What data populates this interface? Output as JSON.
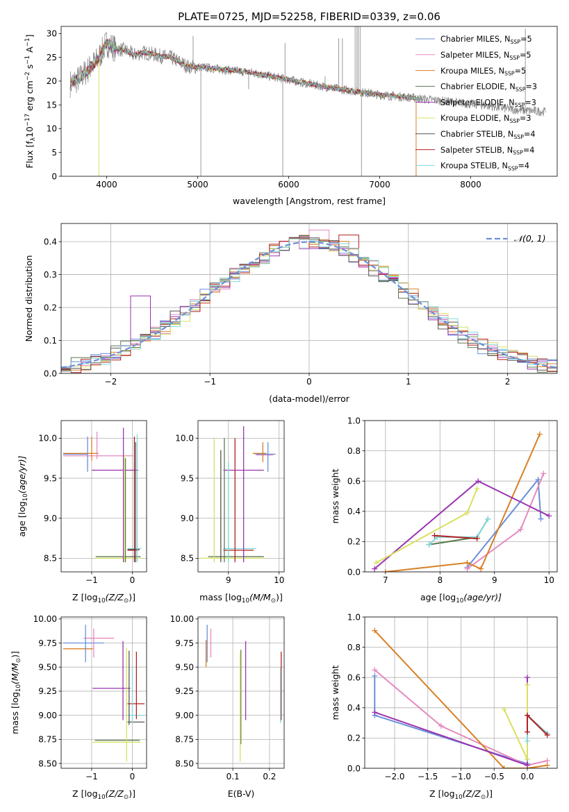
{
  "figure": {
    "title": "PLATE=0725, MJD=52258, FIBERID=0339, z=0.06"
  },
  "colors": {
    "Chabrier MILES": "#6a8fd8",
    "Salpeter MILES": "#e58ac0",
    "Kroupa MILES": "#d87f24",
    "Chabrier ELODIE": "#5a7a50",
    "Salpeter ELODIE": "#9a33b0",
    "Kroupa ELODIE": "#d8e060",
    "Chabrier STELIB": "#555555",
    "Salpeter STELIB": "#b02020",
    "Kroupa STELIB": "#80d8d8",
    "data": "#808080",
    "normal_curve": "#6a8fd8"
  },
  "chart_data": [
    {
      "id": "spectrum",
      "type": "line",
      "title": "PLATE=0725, MJD=52258, FIBERID=0339, z=0.06",
      "xlabel": "wavelength [Angstrom, rest frame]",
      "ylabel_parts": [
        "Flux [f",
        "λ",
        "10",
        "−17",
        " erg cm",
        "−2",
        " s",
        "−1",
        " A",
        "−1",
        "]"
      ],
      "xlim": [
        3500,
        8950
      ],
      "ylim": [
        0,
        31.5
      ],
      "xticks": [
        4000,
        5000,
        6000,
        7000,
        8000
      ],
      "yticks": [
        0,
        5,
        10,
        15,
        20,
        25,
        30
      ],
      "grid": false,
      "legend_position": "top-right",
      "legend": [
        {
          "name": "Chabrier MILES",
          "n": "5"
        },
        {
          "name": "Salpeter MILES",
          "n": "5"
        },
        {
          "name": "Kroupa MILES",
          "n": "5"
        },
        {
          "name": "Chabrier ELODIE",
          "n": "3"
        },
        {
          "name": "Salpeter ELODIE",
          "n": "3"
        },
        {
          "name": "Kroupa ELODIE",
          "n": "3"
        },
        {
          "name": "Chabrier STELIB",
          "n": "4"
        },
        {
          "name": "Salpeter STELIB",
          "n": "4"
        },
        {
          "name": "Kroupa STELIB",
          "n": "4"
        }
      ],
      "continuum_x": [
        3600,
        3700,
        3800,
        3900,
        4000,
        4100,
        4200,
        4300,
        4400,
        4500,
        4600,
        4700,
        4800,
        4900,
        5000,
        5200,
        5400,
        5600,
        5800,
        6000,
        6200,
        6400,
        6600,
        6800,
        7000,
        7200,
        7400,
        7600,
        7800,
        8000,
        8200,
        8400,
        8600,
        8800
      ],
      "continuum_y": [
        19.5,
        20.5,
        22.5,
        24.5,
        28.0,
        26.8,
        26.5,
        25.5,
        26.0,
        25.7,
        25.2,
        25.0,
        24.0,
        23.0,
        23.0,
        22.6,
        22.2,
        21.8,
        21.0,
        20.3,
        19.5,
        18.8,
        18.2,
        17.7,
        17.1,
        16.8,
        16.4,
        16.0,
        15.6,
        15.2,
        14.8,
        14.2,
        13.8,
        13.6
      ],
      "model_x_max": 7450,
      "spikes_up": [
        [
          4950,
          29.5
        ],
        [
          5960,
          28.0
        ],
        [
          6400,
          21.0
        ],
        [
          6550,
          29.0
        ],
        [
          6590,
          29.0
        ],
        [
          6730,
          31.5
        ],
        [
          6750,
          31.5
        ],
        [
          6765,
          31.5
        ],
        [
          6785,
          31.5
        ],
        [
          8600,
          31.0
        ],
        [
          5560,
          18.3
        ]
      ],
      "spikes_down": [
        [
          3915,
          0.0
        ],
        [
          5035,
          0.0
        ],
        [
          5935,
          0.0
        ],
        [
          6800,
          0.0
        ],
        [
          7400,
          0.0
        ]
      ]
    },
    {
      "id": "residual_hist",
      "type": "line",
      "xlabel": "(data-model)/error",
      "ylabel": "Normed distribution",
      "xlim": [
        -2.5,
        2.5
      ],
      "ylim": [
        0,
        0.455
      ],
      "xticks": [
        -2,
        -1,
        0,
        1,
        2
      ],
      "yticks": [
        0.0,
        0.1,
        0.2,
        0.3,
        0.4
      ],
      "grid": true,
      "legend_position": "top-right",
      "legend_label": "𝒩(0, 1)",
      "bin_width": 0.1,
      "mu": 0,
      "sigma": 1,
      "special_bins": [
        {
          "series": "Salpeter ELODIE",
          "x": -1.7,
          "y": 0.235
        },
        {
          "series": "Salpeter MILES",
          "x": 0.1,
          "y": 0.435
        },
        {
          "series": "Salpeter STELIB",
          "x": 0.4,
          "y": 0.42
        }
      ]
    },
    {
      "id": "age_vs_Z",
      "type": "scatter",
      "xlabel_parts": [
        "Z [log",
        "10",
        "(Z/Z",
        "⊙",
        ")]"
      ],
      "ylabel_parts": [
        "age  [log",
        "10",
        "(age/yr)]"
      ],
      "xlim": [
        -1.75,
        0.35
      ],
      "ylim": [
        8.33,
        10.22
      ],
      "xticks": [
        -1,
        0
      ],
      "yticks": [
        8.5,
        9.0,
        9.5,
        10.0
      ],
      "grid": true,
      "hbars": [
        {
          "series": "Chabrier MILES",
          "x1": -1.7,
          "x2": -1.1,
          "y": 9.8
        },
        {
          "series": "Kroupa MILES",
          "x1": -1.7,
          "x2": -0.83,
          "y": 9.81
        },
        {
          "series": "Salpeter MILES",
          "x1": -1.7,
          "x2": 0.02,
          "y": 9.78
        },
        {
          "series": "Salpeter ELODIE",
          "x1": -1.0,
          "x2": 0.15,
          "y": 9.6
        },
        {
          "series": "Chabrier ELODIE",
          "x1": -0.9,
          "x2": 0.2,
          "y": 8.52
        },
        {
          "series": "Kroupa ELODIE",
          "x1": -0.92,
          "x2": 0.22,
          "y": 8.5
        },
        {
          "series": "Kroupa STELIB",
          "x1": -0.12,
          "x2": 0.22,
          "y": 8.62
        },
        {
          "series": "Chabrier STELIB",
          "x1": -0.12,
          "x2": 0.18,
          "y": 8.61
        },
        {
          "series": "Salpeter STELIB",
          "x1": -0.12,
          "x2": 0.15,
          "y": 8.6
        }
      ],
      "vbars": [
        {
          "series": "Chabrier MILES",
          "x": -1.1,
          "y1": 9.58,
          "y2": 10.02
        },
        {
          "series": "Salpeter MILES",
          "x": -0.87,
          "y1": 9.74,
          "y2": 10.08
        },
        {
          "series": "Kroupa MILES",
          "x": -1.0,
          "y1": 9.72,
          "y2": 10.02
        },
        {
          "series": "Salpeter ELODIE",
          "x": -0.22,
          "y1": 8.45,
          "y2": 10.13
        },
        {
          "series": "Chabrier ELODIE",
          "x": -0.17,
          "y1": 8.45,
          "y2": 9.75
        },
        {
          "series": "Kroupa ELODIE",
          "x": -0.2,
          "y1": 8.45,
          "y2": 9.8
        },
        {
          "series": "Salpeter STELIB",
          "x": 0.05,
          "y1": 8.45,
          "y2": 10.02
        },
        {
          "series": "Kroupa STELIB",
          "x": 0.12,
          "y1": 8.45,
          "y2": 10.05
        },
        {
          "series": "Chabrier STELIB",
          "x": 0.08,
          "y1": 8.45,
          "y2": 9.95
        }
      ]
    },
    {
      "id": "age_vs_mass",
      "type": "scatter",
      "xlabel_parts": [
        "mass [log",
        "10",
        "(M/M",
        "⊙",
        ")]"
      ],
      "xlim": [
        8.4,
        10.1
      ],
      "ylim": [
        8.33,
        10.22
      ],
      "xticks": [
        9,
        10
      ],
      "yticks": [
        8.5,
        9.0,
        9.5,
        10.0
      ],
      "grid": true,
      "hbars": [
        {
          "series": "Kroupa MILES",
          "x1": 9.48,
          "x2": 9.75,
          "y": 9.81
        },
        {
          "series": "Chabrier MILES",
          "x1": 9.53,
          "x2": 9.93,
          "y": 9.8
        },
        {
          "series": "Salpeter MILES",
          "x1": 9.55,
          "x2": 9.88,
          "y": 9.79
        },
        {
          "series": "Salpeter ELODIE",
          "x1": 8.9,
          "x2": 9.7,
          "y": 9.6
        },
        {
          "series": "Chabrier ELODIE",
          "x1": 8.6,
          "x2": 9.7,
          "y": 8.52
        },
        {
          "series": "Kroupa ELODIE",
          "x1": 8.45,
          "x2": 9.7,
          "y": 8.5
        },
        {
          "series": "Kroupa STELIB",
          "x1": 8.9,
          "x2": 9.55,
          "y": 8.62
        },
        {
          "series": "Salpeter STELIB",
          "x1": 8.9,
          "x2": 9.5,
          "y": 8.6
        }
      ],
      "vbars": [
        {
          "series": "Chabrier MILES",
          "x": 9.78,
          "y1": 9.58,
          "y2": 9.95
        },
        {
          "series": "Kroupa MILES",
          "x": 9.68,
          "y1": 9.7,
          "y2": 9.95
        },
        {
          "series": "Salpeter ELODIE",
          "x": 9.3,
          "y1": 8.45,
          "y2": 10.15
        },
        {
          "series": "Chabrier ELODIE",
          "x": 8.92,
          "y1": 8.45,
          "y2": 10.0
        },
        {
          "series": "Kroupa ELODIE",
          "x": 8.72,
          "y1": 8.45,
          "y2": 10.0
        },
        {
          "series": "Chabrier STELIB",
          "x": 8.85,
          "y1": 8.45,
          "y2": 9.85
        },
        {
          "series": "Salpeter STELIB",
          "x": 9.13,
          "y1": 8.45,
          "y2": 10.0
        },
        {
          "series": "Kroupa STELIB",
          "x": 9.0,
          "y1": 8.45,
          "y2": 9.7
        }
      ]
    },
    {
      "id": "weight_vs_age",
      "type": "line",
      "xlabel_parts": [
        "age  [log",
        "10",
        "(age/yr)]"
      ],
      "ylabel": "mass weight",
      "xlim": [
        6.62,
        10.15
      ],
      "ylim": [
        0,
        1.0
      ],
      "xticks": [
        7,
        8,
        9,
        10
      ],
      "yticks": [
        0.0,
        0.2,
        0.4,
        0.6,
        0.8,
        1.0
      ],
      "grid": true,
      "series": [
        {
          "name": "Chabrier MILES",
          "x": [
            8.5,
            9.8,
            9.85
          ],
          "y": [
            0.03,
            0.61,
            0.35
          ]
        },
        {
          "name": "Salpeter MILES",
          "x": [
            8.5,
            9.48,
            9.9
          ],
          "y": [
            0.02,
            0.28,
            0.65
          ]
        },
        {
          "name": "Kroupa MILES",
          "x": [
            7.0,
            8.5,
            8.75,
            9.83
          ],
          "y": [
            0.0,
            0.06,
            0.02,
            0.91
          ]
        },
        {
          "name": "Salpeter ELODIE",
          "x": [
            6.8,
            8.7,
            10.0
          ],
          "y": [
            0.02,
            0.6,
            0.37
          ]
        },
        {
          "name": "Kroupa ELODIE",
          "x": [
            6.83,
            8.5,
            8.68
          ],
          "y": [
            0.06,
            0.39,
            0.55
          ]
        },
        {
          "name": "Chabrier ELODIE",
          "x": [
            7.8,
            8.68,
            8.88
          ],
          "y": [
            0.18,
            0.23,
            0.35
          ]
        },
        {
          "name": "Kroupa STELIB",
          "x": [
            7.8,
            7.95,
            8.68,
            8.88
          ],
          "y": [
            0.18,
            0.23,
            0.23,
            0.35
          ]
        },
        {
          "name": "Salpeter STELIB",
          "x": [
            7.9,
            8.68
          ],
          "y": [
            0.24,
            0.22
          ]
        }
      ]
    },
    {
      "id": "mass_vs_Z",
      "type": "scatter",
      "xlabel_parts": [
        "Z [log",
        "10",
        "(Z/Z",
        "⊙",
        ")]"
      ],
      "ylabel_parts": [
        "mass [log",
        "10",
        "(M/M",
        "⊙",
        ")]"
      ],
      "xlim": [
        -1.75,
        0.35
      ],
      "ylim": [
        8.45,
        10.02
      ],
      "xticks": [
        -1,
        0
      ],
      "yticks": [
        8.5,
        8.75,
        9.0,
        9.25,
        9.5,
        9.75,
        10.0
      ],
      "grid": true,
      "hbars": [
        {
          "series": "Chabrier MILES",
          "x1": -1.7,
          "x2": -0.7,
          "y": 9.75
        },
        {
          "series": "Kroupa MILES",
          "x1": -1.7,
          "x2": -0.97,
          "y": 9.69
        },
        {
          "series": "Salpeter MILES",
          "x1": -1.2,
          "x2": -0.45,
          "y": 9.8
        },
        {
          "series": "Salpeter ELODIE",
          "x1": -0.98,
          "x2": -0.05,
          "y": 9.28
        },
        {
          "series": "Kroupa ELODIE",
          "x1": -0.98,
          "x2": 0.2,
          "y": 8.72
        },
        {
          "series": "Chabrier ELODIE",
          "x1": -0.92,
          "x2": 0.18,
          "y": 8.74
        },
        {
          "series": "Chabrier STELIB",
          "x1": -0.12,
          "x2": 0.3,
          "y": 8.93
        },
        {
          "series": "Salpeter STELIB",
          "x1": -0.12,
          "x2": 0.3,
          "y": 9.12
        },
        {
          "series": "Kroupa STELIB",
          "x1": -0.12,
          "x2": 0.3,
          "y": 9.0
        }
      ],
      "vbars": [
        {
          "series": "Chabrier MILES",
          "x": -1.15,
          "y1": 9.55,
          "y2": 9.94
        },
        {
          "series": "Salpeter MILES",
          "x": -0.95,
          "y1": 9.6,
          "y2": 9.9
        },
        {
          "series": "Salpeter ELODIE",
          "x": -0.23,
          "y1": 8.95,
          "y2": 9.77
        },
        {
          "series": "Kroupa ELODIE",
          "x": -0.14,
          "y1": 8.52,
          "y2": 9.7
        },
        {
          "series": "Chabrier STELIB",
          "x": -0.08,
          "y1": 8.9,
          "y2": 9.67
        },
        {
          "series": "Salpeter STELIB",
          "x": 0.1,
          "y1": 8.96,
          "y2": 9.66
        },
        {
          "series": "Kroupa STELIB",
          "x": 0.0,
          "y1": 8.92,
          "y2": 9.5
        }
      ]
    },
    {
      "id": "mass_vs_ebv",
      "type": "scatter",
      "xlabel": "E(B-V)",
      "xlim": [
        0.005,
        0.24
      ],
      "ylim": [
        8.45,
        10.02
      ],
      "xticks": [
        0.1,
        0.2
      ],
      "yticks": [
        8.5,
        8.75,
        9.0,
        9.25,
        9.5,
        9.75,
        10.0
      ],
      "grid": true,
      "vbars": [
        {
          "series": "Chabrier MILES",
          "x": 0.03,
          "y1": 9.55,
          "y2": 9.94
        },
        {
          "series": "Kroupa MILES",
          "x": 0.027,
          "y1": 9.5,
          "y2": 9.78
        },
        {
          "series": "Salpeter MILES",
          "x": 0.04,
          "y1": 9.6,
          "y2": 9.9
        },
        {
          "series": "Chabrier ELODIE",
          "x": 0.122,
          "y1": 8.7,
          "y2": 9.68
        },
        {
          "series": "Kroupa ELODIE",
          "x": 0.12,
          "y1": 8.52,
          "y2": 9.65
        },
        {
          "series": "Salpeter ELODIE",
          "x": 0.135,
          "y1": 8.95,
          "y2": 9.77
        },
        {
          "series": "Salpeter STELIB",
          "x": 0.232,
          "y1": 8.95,
          "y2": 9.66
        },
        {
          "series": "Kroupa STELIB",
          "x": 0.23,
          "y1": 8.92,
          "y2": 9.5
        }
      ]
    },
    {
      "id": "weight_vs_Z",
      "type": "line",
      "xlabel_parts": [
        "Z [log",
        "10",
        "(Z/Z",
        "⊙",
        ")]"
      ],
      "ylabel": "mass weight",
      "xlim": [
        -2.45,
        0.45
      ],
      "ylim": [
        0,
        1.0
      ],
      "xticks": [
        -2.0,
        -1.5,
        -1.0,
        -0.5,
        0.0
      ],
      "yticks": [
        0.0,
        0.2,
        0.4,
        0.6,
        0.8,
        1.0
      ],
      "grid": true,
      "series": [
        {
          "name": "Chabrier MILES",
          "x": [
            -2.3,
            -2.3,
            0.0,
            0.0,
            0.3
          ],
          "y": [
            0.61,
            0.35,
            0.03,
            0.35,
            0.23
          ]
        },
        {
          "name": "Salpeter MILES",
          "x": [
            -2.3,
            -1.3,
            0.0,
            0.3
          ],
          "y": [
            0.65,
            0.28,
            0.02,
            0.05
          ]
        },
        {
          "name": "Kroupa MILES",
          "x": [
            -2.3,
            -0.35,
            0.0,
            0.3
          ],
          "y": [
            0.91,
            0.0,
            0.0,
            0.02
          ]
        },
        {
          "name": "Salpeter ELODIE",
          "x": [
            -2.3,
            0.0,
            0.0
          ],
          "y": [
            0.37,
            0.02,
            0.6
          ]
        },
        {
          "name": "Kroupa ELODIE",
          "x": [
            -0.35,
            0.0,
            0.0
          ],
          "y": [
            0.39,
            0.06,
            0.55
          ]
        },
        {
          "name": "Kroupa STELIB",
          "x": [
            0.0,
            0.0,
            0.3
          ],
          "y": [
            0.18,
            0.35,
            0.23
          ]
        },
        {
          "name": "Salpeter STELIB",
          "x": [
            0.0,
            0.0,
            0.3
          ],
          "y": [
            0.24,
            0.35,
            0.22
          ]
        }
      ]
    }
  ]
}
